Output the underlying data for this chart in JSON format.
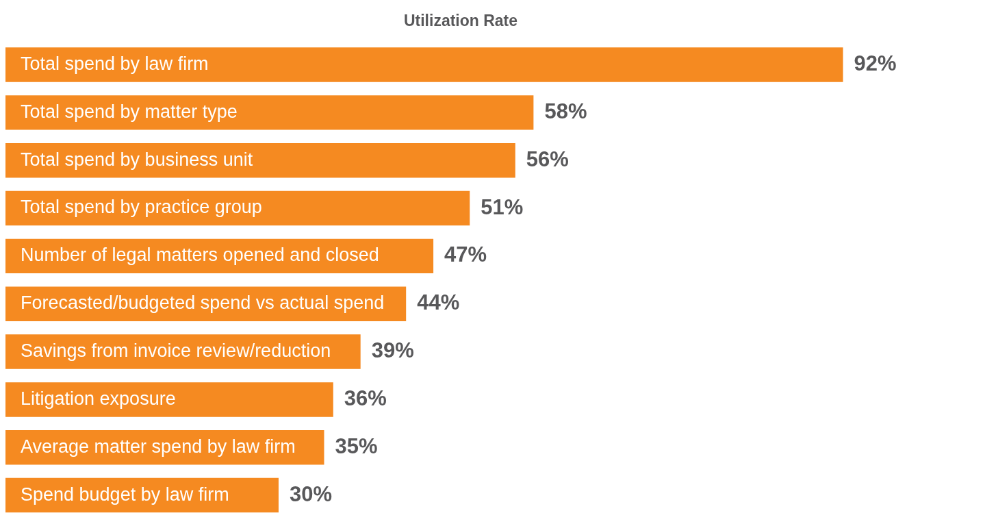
{
  "chart_data": {
    "type": "bar",
    "orientation": "horizontal",
    "title": "Utilization Rate",
    "categories": [
      "Total spend by law firm",
      "Total spend by matter type",
      "Total spend by business unit",
      "Total spend by practice group",
      "Number of legal matters opened and closed",
      "Forecasted/budgeted spend vs actual spend",
      "Savings from invoice review/reduction",
      "Litigation exposure",
      "Average matter spend by law firm",
      "Spend budget by law firm"
    ],
    "values": [
      92,
      58,
      56,
      51,
      47,
      44,
      39,
      36,
      35,
      30
    ],
    "value_labels": [
      "92%",
      "58%",
      "56%",
      "51%",
      "47%",
      "44%",
      "39%",
      "36%",
      "35%",
      "30%"
    ],
    "color": "#f58a21"
  }
}
